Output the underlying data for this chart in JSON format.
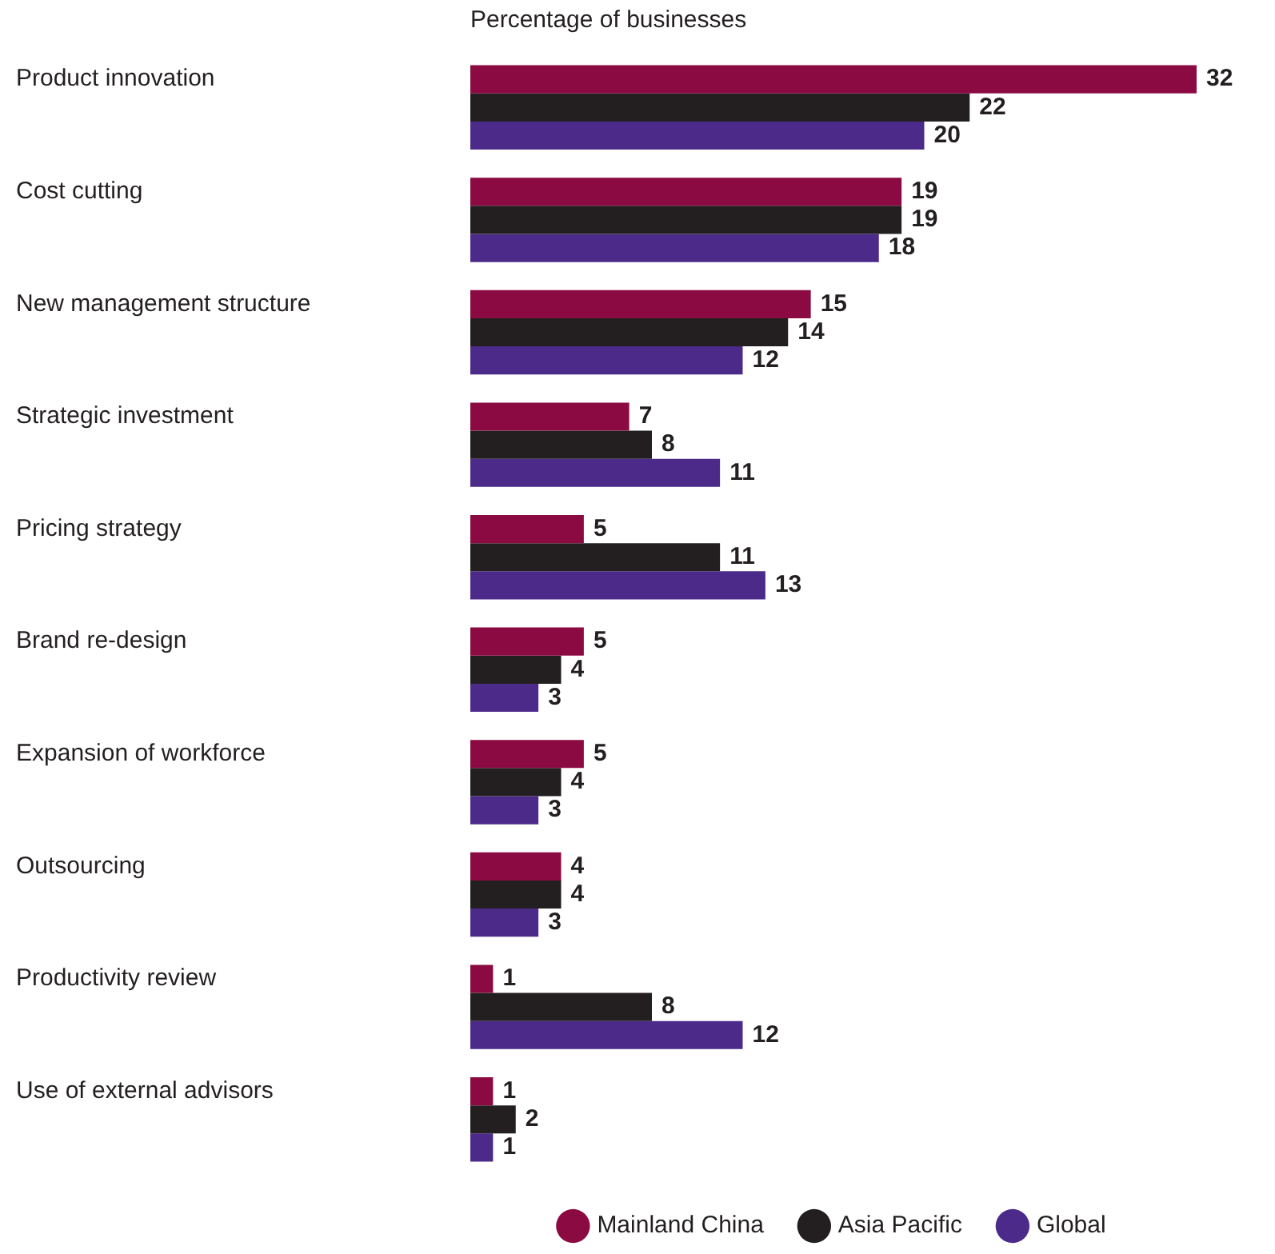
{
  "chart_data": {
    "type": "bar",
    "orientation": "horizontal",
    "subtitle": "Percentage of businesses",
    "categories": [
      "Product innovation",
      "Cost cutting",
      "New management structure",
      "Strategic investment",
      "Pricing strategy",
      "Brand re-design",
      "Expansion of workforce",
      "Outsourcing",
      "Productivity review",
      "Use of external advisors"
    ],
    "series": [
      {
        "name": "Mainland China",
        "color": "#8b0a41",
        "values": [
          32,
          19,
          15,
          7,
          5,
          5,
          5,
          4,
          1,
          1
        ]
      },
      {
        "name": "Asia Pacific",
        "color": "#231f20",
        "values": [
          22,
          19,
          14,
          8,
          11,
          4,
          4,
          4,
          8,
          2
        ]
      },
      {
        "name": "Global",
        "color": "#4b2a8a",
        "values": [
          20,
          18,
          12,
          11,
          13,
          3,
          3,
          3,
          12,
          1
        ]
      }
    ],
    "xlim": [
      0,
      32
    ],
    "tick_labels": "y",
    "grid": false,
    "legend": "bottom",
    "data_labels": true
  }
}
